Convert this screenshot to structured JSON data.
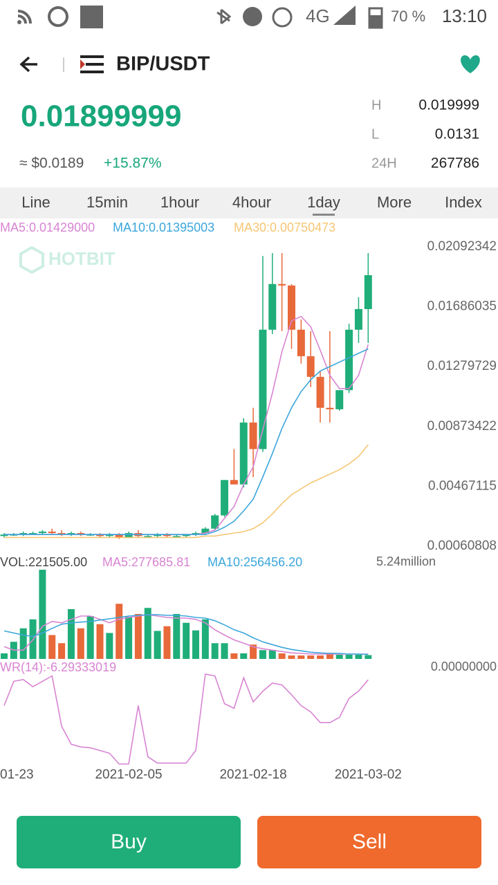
{
  "status_bar": {
    "network": "4G",
    "battery": "70 %",
    "time": "13:10"
  },
  "header": {
    "pair": "BIP/USDT"
  },
  "ticker": {
    "price": "0.01899999",
    "usd": "≈ $0.0189",
    "change": "+15.87%",
    "stats": [
      {
        "label": "H",
        "value": "0.019999"
      },
      {
        "label": "L",
        "value": "0.0131"
      },
      {
        "label": "24H",
        "value": "267786"
      }
    ]
  },
  "tabs": [
    "Line",
    "15min",
    "1hour",
    "4hour",
    "1day",
    "More",
    "Index"
  ],
  "selected_tab": 4,
  "watermark": "HOTBIT",
  "chart_data": [
    {
      "type": "candlestick",
      "up_color": "#1fae7a",
      "down_color": "#e8693a",
      "ylim": [
        0.00060808,
        0.02092342
      ],
      "yticks": [
        0.02092342,
        0.01686035,
        0.01279729,
        0.00873422,
        0.00467115,
        0.00060808
      ],
      "ohlc": [
        [
          0.0013,
          0.0015,
          0.0012,
          0.0014
        ],
        [
          0.0014,
          0.0015,
          0.0013,
          0.0014
        ],
        [
          0.0014,
          0.0016,
          0.0013,
          0.0015
        ],
        [
          0.0015,
          0.0016,
          0.0014,
          0.0015
        ],
        [
          0.0015,
          0.0017,
          0.0014,
          0.0016
        ],
        [
          0.0016,
          0.0018,
          0.0014,
          0.0015
        ],
        [
          0.0015,
          0.0017,
          0.0013,
          0.0014
        ],
        [
          0.0014,
          0.0016,
          0.0013,
          0.0015
        ],
        [
          0.0015,
          0.0016,
          0.0013,
          0.0014
        ],
        [
          0.0014,
          0.0015,
          0.0013,
          0.0014
        ],
        [
          0.0014,
          0.0015,
          0.0012,
          0.0013
        ],
        [
          0.0013,
          0.0015,
          0.0012,
          0.0014
        ],
        [
          0.0014,
          0.0015,
          0.0011,
          0.0012
        ],
        [
          0.0012,
          0.0016,
          0.0012,
          0.0015
        ],
        [
          0.0015,
          0.0017,
          0.0012,
          0.0013
        ],
        [
          0.0013,
          0.0014,
          0.0012,
          0.0013
        ],
        [
          0.0013,
          0.0015,
          0.0012,
          0.0014
        ],
        [
          0.0014,
          0.0015,
          0.0012,
          0.0013
        ],
        [
          0.0013,
          0.0014,
          0.0012,
          0.0013
        ],
        [
          0.0013,
          0.0014,
          0.0012,
          0.0014
        ],
        [
          0.0014,
          0.0016,
          0.0013,
          0.0015
        ],
        [
          0.0015,
          0.0019,
          0.0014,
          0.0018
        ],
        [
          0.0018,
          0.0028,
          0.0017,
          0.0027
        ],
        [
          0.0027,
          0.0051,
          0.0026,
          0.0051
        ],
        [
          0.0051,
          0.0072,
          0.0048,
          0.0048
        ],
        [
          0.0048,
          0.0093,
          0.0046,
          0.009
        ],
        [
          0.009,
          0.01,
          0.0053,
          0.0072
        ],
        [
          0.0072,
          0.0203,
          0.007,
          0.0153
        ],
        [
          0.0153,
          0.0205,
          0.015,
          0.0184
        ],
        [
          0.0184,
          0.0205,
          0.0152,
          0.0183
        ],
        [
          0.0183,
          0.0184,
          0.014,
          0.0153
        ],
        [
          0.0153,
          0.016,
          0.013,
          0.0135
        ],
        [
          0.0135,
          0.0152,
          0.0114,
          0.0121
        ],
        [
          0.0121,
          0.0125,
          0.009,
          0.01
        ],
        [
          0.01,
          0.0152,
          0.009,
          0.0099
        ],
        [
          0.0099,
          0.0112,
          0.0098,
          0.0112
        ],
        [
          0.0112,
          0.0157,
          0.011,
          0.0153
        ],
        [
          0.0153,
          0.0175,
          0.0144,
          0.0167
        ],
        [
          0.0167,
          0.0205,
          0.0144,
          0.019
        ]
      ],
      "series": [
        {
          "name": "MA5",
          "label": "MA5:0.01429000",
          "color": "#d884d2",
          "values": [
            0.0014,
            0.0014,
            0.0014,
            0.0014,
            0.0014,
            0.0014,
            0.0014,
            0.0014,
            0.0014,
            0.0014,
            0.0014,
            0.0014,
            0.0014,
            0.0014,
            0.0014,
            0.0014,
            0.0014,
            0.0014,
            0.0014,
            0.0014,
            0.0014,
            0.0015,
            0.0017,
            0.0025,
            0.0033,
            0.0048,
            0.006,
            0.0085,
            0.011,
            0.0138,
            0.0159,
            0.0162,
            0.0155,
            0.0139,
            0.0122,
            0.0113,
            0.0113,
            0.0122,
            0.0143
          ]
        },
        {
          "name": "MA10",
          "label": "MA10:0.01395003",
          "color": "#3ba6db",
          "values": [
            0.0014,
            0.0014,
            0.0014,
            0.0014,
            0.0014,
            0.0014,
            0.0014,
            0.0014,
            0.0014,
            0.0014,
            0.0014,
            0.0014,
            0.0014,
            0.0014,
            0.0014,
            0.0014,
            0.0014,
            0.0014,
            0.0014,
            0.0014,
            0.0014,
            0.0014,
            0.0016,
            0.0019,
            0.0023,
            0.003,
            0.0038,
            0.0053,
            0.0069,
            0.0086,
            0.01,
            0.0111,
            0.0119,
            0.0125,
            0.0128,
            0.0131,
            0.0134,
            0.0137,
            0.014
          ]
        },
        {
          "name": "MA30",
          "label": "MA30:0.00750473",
          "color": "#f5c673",
          "values": [
            0.0012,
            0.0012,
            0.0012,
            0.0012,
            0.0012,
            0.0012,
            0.0012,
            0.0012,
            0.0012,
            0.0012,
            0.0012,
            0.0012,
            0.0012,
            0.0012,
            0.0012,
            0.0012,
            0.0012,
            0.0012,
            0.0012,
            0.0012,
            0.0012,
            0.0013,
            0.0013,
            0.0014,
            0.0015,
            0.0016,
            0.0018,
            0.0022,
            0.0028,
            0.0035,
            0.0041,
            0.0045,
            0.0049,
            0.0052,
            0.0055,
            0.0058,
            0.0062,
            0.0067,
            0.0075
          ]
        }
      ]
    },
    {
      "type": "bar",
      "title": "VOL:221505.00",
      "ylim": [
        0,
        5.24
      ],
      "yticks": [
        {
          "value": 5.24,
          "label": "5.24million"
        },
        {
          "value": 0,
          "label": "0.00000000"
        }
      ],
      "values": [
        0.32,
        0.99,
        1.77,
        2.29,
        5.16,
        1.38,
        0.91,
        2.88,
        1.77,
        2.48,
        2.01,
        1.5,
        3.19,
        2.44,
        2.6,
        2.95,
        1.62,
        1.89,
        2.6,
        2.09,
        1.65,
        2.29,
        0.91,
        0.91,
        0.32,
        0.32,
        0.83,
        0.51,
        0.51,
        0.32,
        0.2,
        0.2,
        0.2,
        0.2,
        0.35,
        0.24,
        0.24,
        0.24,
        0.22
      ],
      "series": [
        {
          "name": "MA5",
          "label": "MA5:277685.81",
          "color": "#d884d2",
          "values": [
            0.71,
            0.51,
            0.51,
            1.1,
            1.89,
            2.17,
            2.09,
            2.29,
            2.48,
            2.48,
            2.29,
            2.09,
            2.29,
            2.4,
            2.48,
            2.56,
            2.48,
            2.4,
            2.36,
            2.36,
            2.29,
            2.09,
            1.69,
            1.38,
            1.1,
            0.91,
            0.71,
            0.59,
            0.51,
            0.43,
            0.35,
            0.32,
            0.28,
            0.28,
            0.28,
            0.28,
            0.28,
            0.28,
            0.28
          ]
        },
        {
          "name": "MA10",
          "label": "MA10:256456.20",
          "color": "#3ba6db",
          "values": [
            1.62,
            1.5,
            1.38,
            1.3,
            1.5,
            1.77,
            2.01,
            2.09,
            2.13,
            2.17,
            2.25,
            2.32,
            2.4,
            2.48,
            2.52,
            2.56,
            2.56,
            2.52,
            2.52,
            2.48,
            2.4,
            2.36,
            2.21,
            1.97,
            1.69,
            1.5,
            1.22,
            0.99,
            0.83,
            0.67,
            0.55,
            0.47,
            0.39,
            0.35,
            0.32,
            0.32,
            0.28,
            0.28,
            0.26
          ]
        }
      ]
    },
    {
      "type": "line",
      "title": "WR(14):-6.29333019",
      "ylim": [
        -100,
        0
      ],
      "color": "#d884d2",
      "categories": [
        "01-23",
        null,
        null,
        null,
        null,
        null,
        null,
        null,
        null,
        null,
        null,
        null,
        null,
        "2021-02-05",
        null,
        null,
        null,
        null,
        null,
        null,
        null,
        null,
        null,
        null,
        null,
        null,
        "2021-02-18",
        null,
        null,
        null,
        null,
        null,
        null,
        null,
        null,
        null,
        null,
        null,
        "2021-03-02"
      ],
      "values": [
        -35,
        -8,
        -6,
        -14,
        -8,
        -2,
        -58,
        -78,
        -81,
        -82,
        -85,
        -88,
        -100,
        -100,
        -35,
        -92,
        -99,
        -99,
        -99,
        -99,
        -85,
        0,
        -2,
        -33,
        -38,
        -4,
        -31,
        -19,
        -10,
        -12,
        -23,
        -35,
        -42,
        -54,
        -54,
        -48,
        -27,
        -19,
        -6.29
      ]
    }
  ],
  "buttons": {
    "buy": "Buy",
    "sell": "Sell"
  }
}
